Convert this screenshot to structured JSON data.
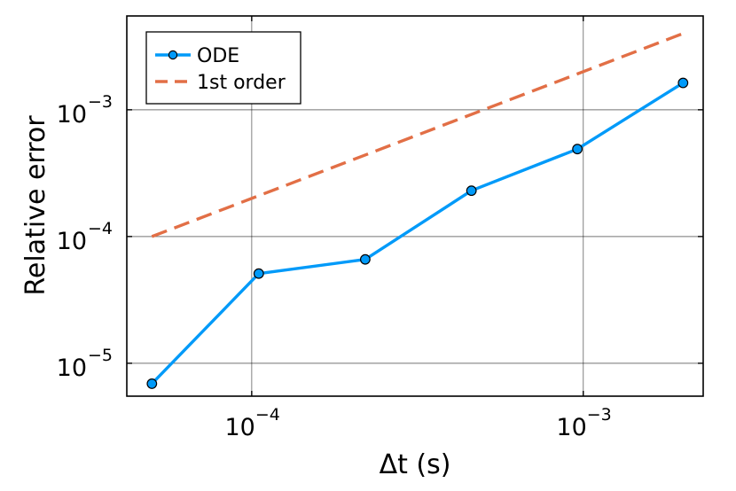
{
  "chart_data": {
    "type": "line",
    "xscale": "log",
    "yscale": "log",
    "xlabel": "Δt (s)",
    "ylabel": "Relative error",
    "xlim": [
      4.2e-05,
      0.0023
    ],
    "ylim": [
      5.5e-06,
      0.0055
    ],
    "grid": true,
    "legend_position": "top-left",
    "x_ticks": [
      {
        "value": 0.0001,
        "base": "10",
        "exp": "−4"
      },
      {
        "value": 0.001,
        "base": "10",
        "exp": "−3"
      }
    ],
    "y_ticks": [
      {
        "value": 1e-05,
        "base": "10",
        "exp": "−5"
      },
      {
        "value": 0.0001,
        "base": "10",
        "exp": "−4"
      },
      {
        "value": 0.001,
        "base": "10",
        "exp": "−3"
      }
    ],
    "series": [
      {
        "name": "ODE",
        "color": "#009af9",
        "style": "solid",
        "markers": true,
        "x": [
          5e-05,
          0.000105,
          0.00022,
          0.00046,
          0.00096,
          0.002
        ],
        "y": [
          6.9e-06,
          5.1e-05,
          6.6e-05,
          0.00023,
          0.00049,
          0.00163
        ]
      },
      {
        "name": "1st order",
        "color": "#e26f46",
        "style": "dashed",
        "markers": false,
        "x": [
          5e-05,
          0.002
        ],
        "y": [
          0.0001,
          0.004
        ]
      }
    ]
  }
}
